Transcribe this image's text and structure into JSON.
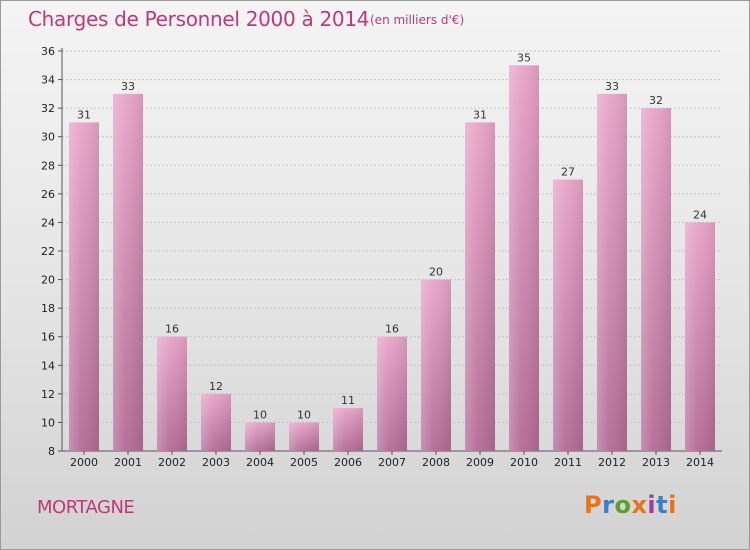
{
  "header": {
    "title": "Charges de Personnel 2000 à 2014",
    "subtitle": "(en milliers d'€)"
  },
  "footer": {
    "location": "MORTAGNE",
    "brand": "Proxiti",
    "brand_colors": [
      "#e8731a",
      "#3b7fc9",
      "#5aa02c",
      "#e8731a",
      "#9b3fa0",
      "#3b7fc9",
      "#e8731a"
    ]
  },
  "colors": {
    "accent": "#c0387a",
    "bar_top": "#e7a4c8",
    "bar_bottom": "#b26b95"
  },
  "chart_data": {
    "type": "bar",
    "title": "Charges de Personnel 2000 à 2014",
    "subtitle": "(en milliers d'€)",
    "categories": [
      "2000",
      "2001",
      "2002",
      "2003",
      "2004",
      "2005",
      "2006",
      "2007",
      "2008",
      "2009",
      "2010",
      "2011",
      "2012",
      "2013",
      "2014"
    ],
    "values": [
      31,
      33,
      16,
      12,
      10,
      10,
      11,
      16,
      20,
      31,
      35,
      27,
      33,
      32,
      24
    ],
    "ylim": [
      8,
      36
    ],
    "yticks": [
      8,
      10,
      12,
      14,
      16,
      18,
      20,
      22,
      24,
      26,
      28,
      30,
      32,
      34,
      36
    ],
    "grid": true,
    "data_labels": true
  }
}
